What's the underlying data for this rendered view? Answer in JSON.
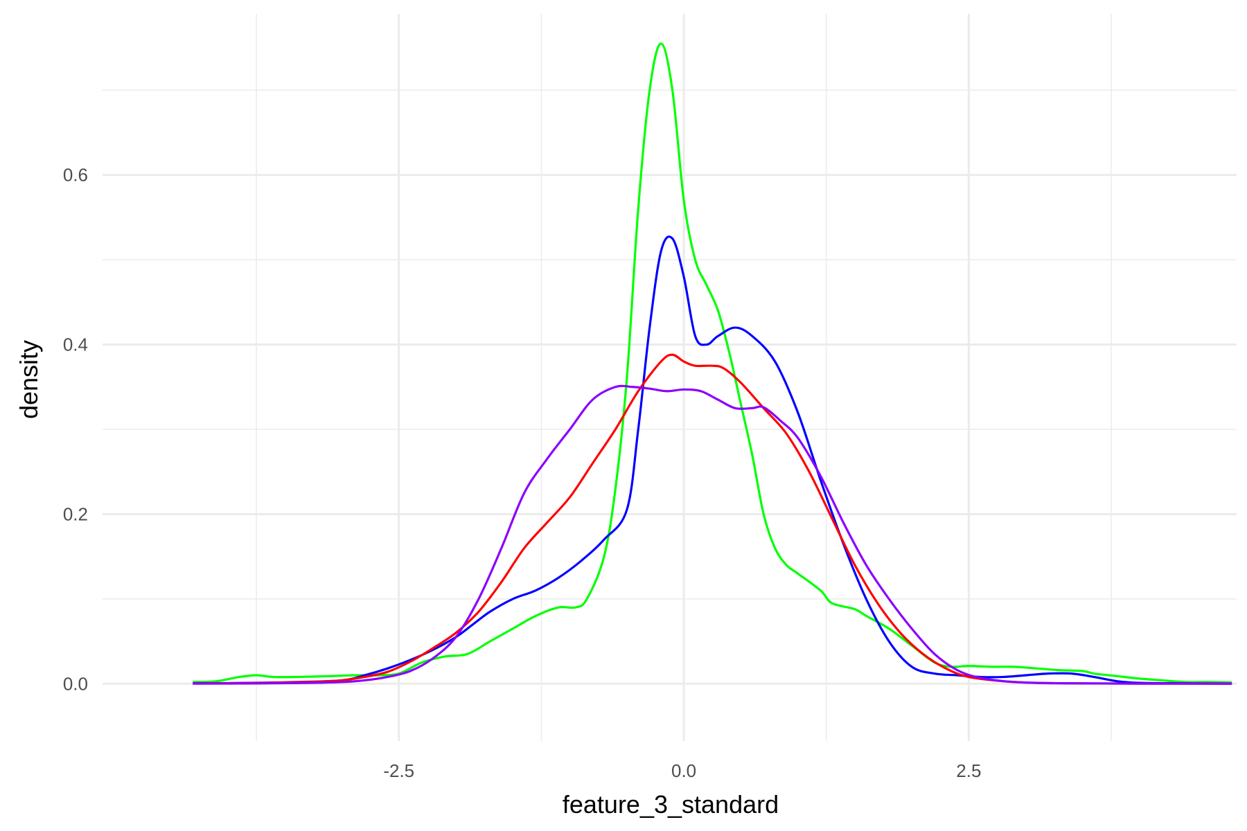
{
  "chart_data": {
    "type": "line",
    "title": "",
    "xlabel": "feature_3_standard",
    "ylabel": "density",
    "xlim": [
      -5.1,
      4.85
    ],
    "ylim": [
      -0.0675,
      0.79
    ],
    "x_ticks": [
      -2.5,
      0.0,
      2.5
    ],
    "x_tick_labels": [
      "-2.5",
      "0.0",
      "2.5"
    ],
    "x_minor": [
      -3.75,
      -1.25,
      1.25,
      3.75
    ],
    "y_ticks": [
      0.0,
      0.2,
      0.4,
      0.6
    ],
    "y_tick_labels": [
      "0.0",
      "0.2",
      "0.4",
      "0.6"
    ],
    "y_minor": [
      0.1,
      0.3,
      0.5,
      0.7
    ],
    "grid": true,
    "legend": "none",
    "series": [
      {
        "color": "#00ff00",
        "points": [
          [
            -4.3,
            0.002
          ],
          [
            -4.1,
            0.003
          ],
          [
            -3.9,
            0.008
          ],
          [
            -3.75,
            0.01
          ],
          [
            -3.6,
            0.008
          ],
          [
            -3.4,
            0.008
          ],
          [
            -3.1,
            0.009
          ],
          [
            -2.9,
            0.01
          ],
          [
            -2.7,
            0.01
          ],
          [
            -2.5,
            0.012
          ],
          [
            -2.3,
            0.025
          ],
          [
            -2.1,
            0.032
          ],
          [
            -1.9,
            0.035
          ],
          [
            -1.7,
            0.05
          ],
          [
            -1.5,
            0.065
          ],
          [
            -1.3,
            0.08
          ],
          [
            -1.1,
            0.09
          ],
          [
            -0.95,
            0.09
          ],
          [
            -0.85,
            0.1
          ],
          [
            -0.7,
            0.15
          ],
          [
            -0.6,
            0.23
          ],
          [
            -0.5,
            0.36
          ],
          [
            -0.4,
            0.56
          ],
          [
            -0.3,
            0.7
          ],
          [
            -0.2,
            0.755
          ],
          [
            -0.1,
            0.7
          ],
          [
            0.0,
            0.57
          ],
          [
            0.1,
            0.5
          ],
          [
            0.2,
            0.47
          ],
          [
            0.3,
            0.44
          ],
          [
            0.4,
            0.39
          ],
          [
            0.5,
            0.33
          ],
          [
            0.6,
            0.27
          ],
          [
            0.7,
            0.2
          ],
          [
            0.8,
            0.16
          ],
          [
            0.9,
            0.14
          ],
          [
            1.0,
            0.13
          ],
          [
            1.2,
            0.11
          ],
          [
            1.3,
            0.095
          ],
          [
            1.5,
            0.088
          ],
          [
            1.6,
            0.08
          ],
          [
            1.8,
            0.065
          ],
          [
            2.0,
            0.045
          ],
          [
            2.2,
            0.025
          ],
          [
            2.35,
            0.02
          ],
          [
            2.5,
            0.021
          ],
          [
            2.7,
            0.02
          ],
          [
            2.9,
            0.02
          ],
          [
            3.1,
            0.018
          ],
          [
            3.3,
            0.016
          ],
          [
            3.5,
            0.015
          ],
          [
            3.6,
            0.012
          ],
          [
            3.8,
            0.009
          ],
          [
            4.0,
            0.006
          ],
          [
            4.2,
            0.004
          ],
          [
            4.4,
            0.002
          ],
          [
            4.6,
            0.002
          ],
          [
            4.8,
            0.0015
          ]
        ]
      },
      {
        "color": "#0000ff",
        "points": [
          [
            -4.3,
            0.0005
          ],
          [
            -3.8,
            0.001
          ],
          [
            -3.4,
            0.002
          ],
          [
            -3.0,
            0.004
          ],
          [
            -2.8,
            0.01
          ],
          [
            -2.6,
            0.018
          ],
          [
            -2.4,
            0.028
          ],
          [
            -2.2,
            0.04
          ],
          [
            -2.0,
            0.055
          ],
          [
            -1.85,
            0.07
          ],
          [
            -1.7,
            0.085
          ],
          [
            -1.5,
            0.1
          ],
          [
            -1.3,
            0.11
          ],
          [
            -1.1,
            0.125
          ],
          [
            -0.9,
            0.145
          ],
          [
            -0.7,
            0.17
          ],
          [
            -0.5,
            0.205
          ],
          [
            -0.4,
            0.3
          ],
          [
            -0.3,
            0.42
          ],
          [
            -0.2,
            0.51
          ],
          [
            -0.1,
            0.525
          ],
          [
            0.0,
            0.48
          ],
          [
            0.1,
            0.41
          ],
          [
            0.2,
            0.4
          ],
          [
            0.3,
            0.41
          ],
          [
            0.45,
            0.42
          ],
          [
            0.6,
            0.41
          ],
          [
            0.8,
            0.38
          ],
          [
            1.0,
            0.32
          ],
          [
            1.2,
            0.24
          ],
          [
            1.4,
            0.165
          ],
          [
            1.6,
            0.1
          ],
          [
            1.8,
            0.05
          ],
          [
            2.0,
            0.02
          ],
          [
            2.2,
            0.012
          ],
          [
            2.4,
            0.01
          ],
          [
            2.6,
            0.008
          ],
          [
            2.8,
            0.008
          ],
          [
            3.0,
            0.01
          ],
          [
            3.2,
            0.012
          ],
          [
            3.4,
            0.012
          ],
          [
            3.6,
            0.008
          ],
          [
            3.8,
            0.003
          ],
          [
            4.0,
            0.001
          ],
          [
            4.4,
            0.0005
          ],
          [
            4.8,
            0.0003
          ]
        ]
      },
      {
        "color": "#ff0000",
        "points": [
          [
            -4.3,
            0.0003
          ],
          [
            -3.8,
            0.0008
          ],
          [
            -3.3,
            0.002
          ],
          [
            -3.0,
            0.004
          ],
          [
            -2.8,
            0.008
          ],
          [
            -2.6,
            0.014
          ],
          [
            -2.4,
            0.026
          ],
          [
            -2.2,
            0.042
          ],
          [
            -2.0,
            0.06
          ],
          [
            -1.8,
            0.085
          ],
          [
            -1.6,
            0.12
          ],
          [
            -1.4,
            0.16
          ],
          [
            -1.2,
            0.19
          ],
          [
            -1.0,
            0.22
          ],
          [
            -0.8,
            0.26
          ],
          [
            -0.6,
            0.3
          ],
          [
            -0.4,
            0.345
          ],
          [
            -0.2,
            0.38
          ],
          [
            -0.1,
            0.388
          ],
          [
            0.0,
            0.38
          ],
          [
            0.1,
            0.375
          ],
          [
            0.25,
            0.375
          ],
          [
            0.35,
            0.372
          ],
          [
            0.5,
            0.355
          ],
          [
            0.7,
            0.325
          ],
          [
            0.9,
            0.295
          ],
          [
            1.1,
            0.25
          ],
          [
            1.3,
            0.195
          ],
          [
            1.5,
            0.14
          ],
          [
            1.7,
            0.095
          ],
          [
            1.9,
            0.06
          ],
          [
            2.1,
            0.035
          ],
          [
            2.3,
            0.018
          ],
          [
            2.5,
            0.008
          ],
          [
            2.8,
            0.003
          ],
          [
            3.1,
            0.001
          ],
          [
            3.5,
            0.0004
          ],
          [
            4.0,
            0.0002
          ],
          [
            4.8,
            0.0001
          ]
        ]
      },
      {
        "color": "#8b00ff",
        "points": [
          [
            -4.3,
            0.0002
          ],
          [
            -3.8,
            0.0004
          ],
          [
            -3.3,
            0.001
          ],
          [
            -3.0,
            0.002
          ],
          [
            -2.8,
            0.004
          ],
          [
            -2.6,
            0.008
          ],
          [
            -2.4,
            0.015
          ],
          [
            -2.2,
            0.03
          ],
          [
            -2.0,
            0.055
          ],
          [
            -1.8,
            0.1
          ],
          [
            -1.6,
            0.16
          ],
          [
            -1.4,
            0.225
          ],
          [
            -1.2,
            0.265
          ],
          [
            -1.0,
            0.3
          ],
          [
            -0.8,
            0.335
          ],
          [
            -0.6,
            0.35
          ],
          [
            -0.45,
            0.35
          ],
          [
            -0.3,
            0.348
          ],
          [
            -0.15,
            0.345
          ],
          [
            0.0,
            0.347
          ],
          [
            0.15,
            0.345
          ],
          [
            0.3,
            0.335
          ],
          [
            0.45,
            0.325
          ],
          [
            0.6,
            0.325
          ],
          [
            0.7,
            0.326
          ],
          [
            0.85,
            0.31
          ],
          [
            1.0,
            0.29
          ],
          [
            1.2,
            0.245
          ],
          [
            1.4,
            0.19
          ],
          [
            1.6,
            0.14
          ],
          [
            1.8,
            0.1
          ],
          [
            2.0,
            0.065
          ],
          [
            2.2,
            0.035
          ],
          [
            2.4,
            0.016
          ],
          [
            2.6,
            0.007
          ],
          [
            2.9,
            0.002
          ],
          [
            3.3,
            0.0006
          ],
          [
            4.0,
            0.0002
          ],
          [
            4.8,
            0.0001
          ]
        ]
      }
    ]
  }
}
